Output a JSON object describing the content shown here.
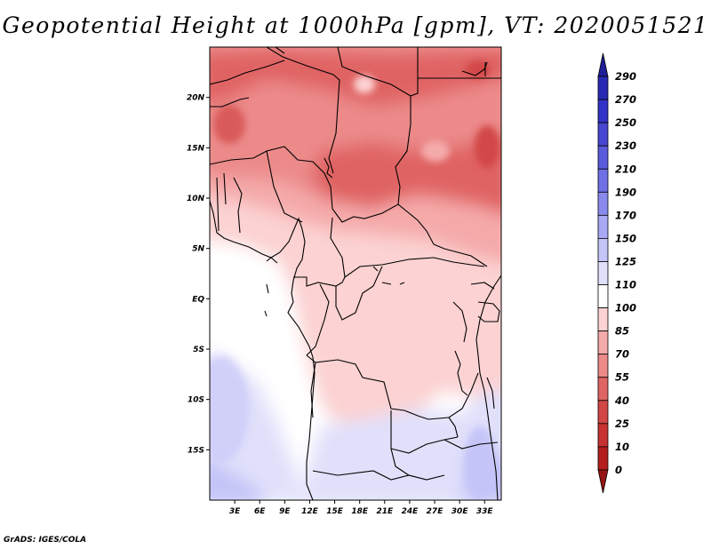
{
  "title": "Geopotential Height at 1000hPa [gpm], VT: 2020051521",
  "credit": "GrADS: IGES/COLA",
  "map": {
    "projection": "lat-lon",
    "longitude_range": [
      0,
      35
    ],
    "latitude_range": [
      -20,
      25
    ],
    "x_ticks": [
      "3E",
      "6E",
      "9E",
      "12E",
      "15E",
      "18E",
      "21E",
      "24E",
      "27E",
      "30E",
      "33E"
    ],
    "y_ticks": [
      "20N",
      "15N",
      "10N",
      "5N",
      "EQ",
      "5S",
      "10S",
      "15S"
    ],
    "field": "Geopotential height at 1000 hPa",
    "units": "gpm",
    "value_pattern": "lowest values (40–70 gpm) over the Sahel and Chad/Sudan in the north, increasing southward through 85–100 gpm over central Africa to 110–150 gpm over the south-western Atlantic corner"
  },
  "colorbar": {
    "labels": [
      "290",
      "270",
      "250",
      "230",
      "210",
      "190",
      "170",
      "150",
      "125",
      "110",
      "100",
      "85",
      "70",
      "55",
      "40",
      "25",
      "10",
      "0"
    ],
    "colors": [
      "#1e1e96",
      "#2828b4",
      "#3232c8",
      "#4646d2",
      "#5a5adc",
      "#7070e6",
      "#8a8aee",
      "#a8a8f4",
      "#c4c4f8",
      "#e0e0fb",
      "#ffffff",
      "#fcd2d2",
      "#f5aaaa",
      "#ec8a8a",
      "#e06464",
      "#d24646",
      "#c83232",
      "#b41e1e",
      "#961414"
    ]
  }
}
